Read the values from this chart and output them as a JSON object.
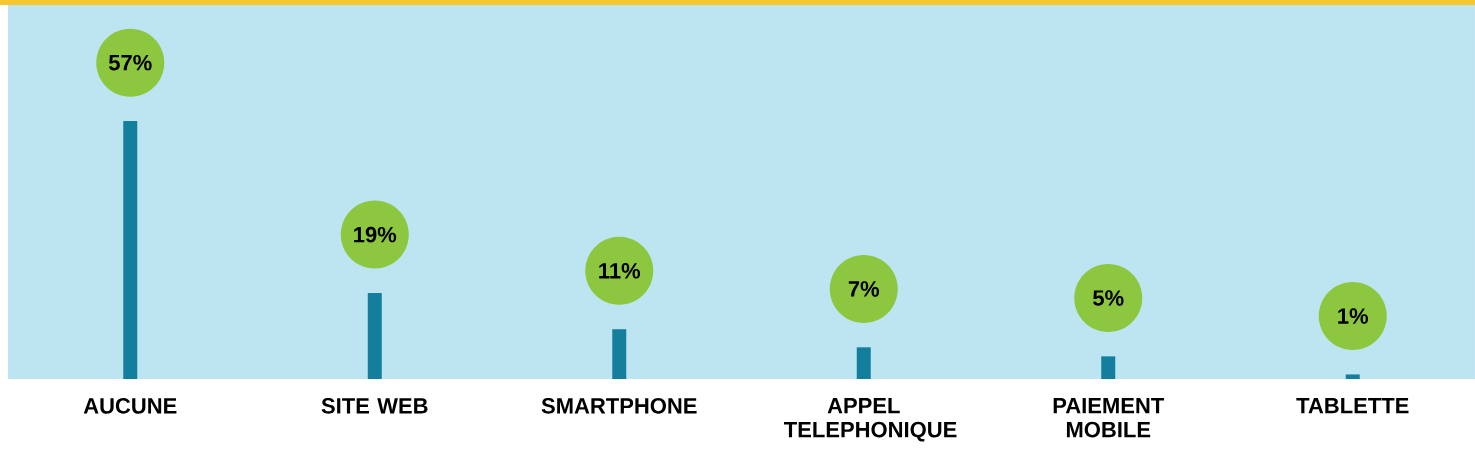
{
  "chart_data": {
    "type": "bar",
    "categories": [
      "AUCUNE",
      "SITE WEB",
      "SMARTPHONE",
      "APPEL TELEPHONIQUE",
      "PAIEMENT MOBILE",
      "TABLETTE"
    ],
    "values": [
      57,
      19,
      11,
      7,
      5,
      1
    ],
    "value_labels": [
      "57%",
      "19%",
      "11%",
      "7%",
      "5%",
      "1%"
    ],
    "color": "#137f9c"
  }
}
